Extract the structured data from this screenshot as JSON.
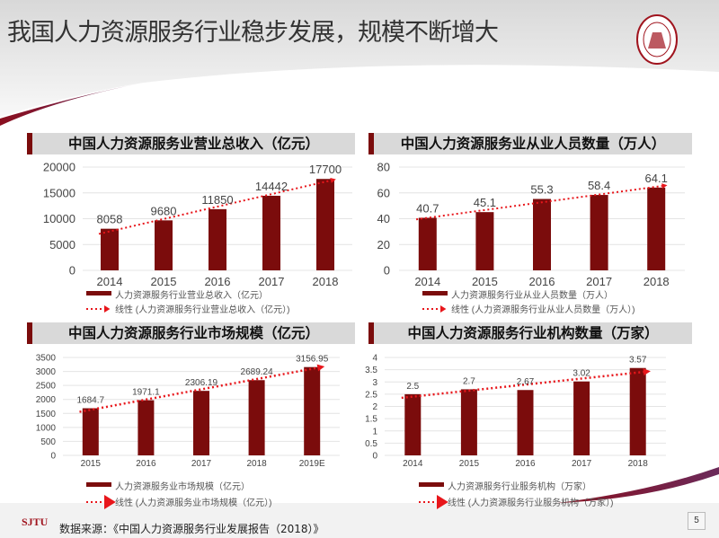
{
  "title": "我国人力资源服务行业稳步发展，规模不断增大",
  "colors": {
    "bar": "#7b0c0c",
    "trend": "#e8161b",
    "accent": "#7b0c0c"
  },
  "logo_text": "SHANGHAI JIAO TONG UNIVERSITY",
  "footer": {
    "brand": "SJTU",
    "source": "数据来源：《中国人力资源服务行业发展报告（2018）》",
    "page": "5"
  },
  "chart_data": [
    {
      "type": "bar",
      "title": "中国人力资源服务业营业总收入（亿元）",
      "categories": [
        "2014",
        "2015",
        "2016",
        "2017",
        "2018"
      ],
      "values": [
        8058,
        9680,
        11850,
        14442,
        17700
      ],
      "labels": [
        "8058",
        "9680",
        "11850",
        "14442",
        "17700"
      ],
      "ylim": [
        0,
        20000
      ],
      "yticks": [
        "0",
        "5000",
        "10000",
        "15000",
        "20000"
      ],
      "legend": [
        "人力资源服务行业营业总收入（亿元）",
        "线性 (人力资源服务行业营业总收入（亿元）)"
      ],
      "trendline": "linear"
    },
    {
      "type": "bar",
      "title": "中国人力资源服务业从业人员数量（万人）",
      "categories": [
        "2014",
        "2015",
        "2016",
        "2017",
        "2018"
      ],
      "values": [
        40.7,
        45.1,
        55.3,
        58.4,
        64.1
      ],
      "labels": [
        "40.7",
        "45.1",
        "55.3",
        "58.4",
        "64.1"
      ],
      "ylim": [
        0,
        80
      ],
      "yticks": [
        "0",
        "20",
        "40",
        "60",
        "80"
      ],
      "legend": [
        "人力资源服务行业从业人员数量（万人）",
        "线性 (人力资源服务行业从业人员数量（万人）)"
      ],
      "trendline": "linear"
    },
    {
      "type": "bar",
      "title": "中国人力资源服务行业市场规模（亿元）",
      "categories": [
        "2015",
        "2016",
        "2017",
        "2018",
        "2019E"
      ],
      "values": [
        1684.7,
        1971.1,
        2306.19,
        2689.24,
        3156.95
      ],
      "labels": [
        "1684.7",
        "1971.1",
        "2306.19",
        "2689.24",
        "3156.95"
      ],
      "ylim": [
        0,
        3500
      ],
      "yticks": [
        "0",
        "500",
        "1000",
        "1500",
        "2000",
        "2500",
        "3000",
        "3500"
      ],
      "legend": [
        "人力资源服务业市场规模（亿元）",
        "线性 (人力资源服务业市场规模（亿元）)"
      ],
      "trendline": "linear"
    },
    {
      "type": "bar",
      "title": "中国人力资源服务行业机构数量（万家）",
      "categories": [
        "2014",
        "2015",
        "2016",
        "2017",
        "2018"
      ],
      "values": [
        2.5,
        2.7,
        2.67,
        3.02,
        3.57
      ],
      "labels": [
        "2.5",
        "2.7",
        "2.67",
        "3.02",
        "3.57"
      ],
      "ylim": [
        0,
        4
      ],
      "yticks": [
        "0",
        "0.5",
        "1",
        "1.5",
        "2",
        "2.5",
        "3",
        "3.5",
        "4"
      ],
      "legend": [
        "人力资源服务行业服务机构（万家）",
        "线性 (人力资源服务行业服务机构（万家）)"
      ],
      "trendline": "linear"
    }
  ]
}
